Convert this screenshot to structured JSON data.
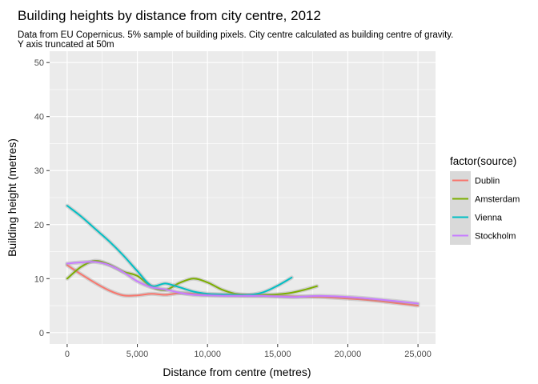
{
  "chart_data": {
    "type": "line",
    "title": "Building heights by distance from city centre, 2012",
    "subtitle_lines": [
      "Data from EU Copernicus. 5% sample of building pixels. City centre calculated as building centre of gravity.",
      "Y axis truncated at 50m"
    ],
    "xlabel": "Distance from centre (metres)",
    "ylabel": "Building height (metres)",
    "xlim": [
      -1250,
      26250
    ],
    "ylim": [
      -2.1,
      52.1
    ],
    "x_ticks": [
      0,
      5000,
      10000,
      15000,
      20000,
      25000
    ],
    "x_tick_labels": [
      "0",
      "5,000",
      "10,000",
      "15,000",
      "20,000",
      "25,000"
    ],
    "y_ticks": [
      0,
      10,
      20,
      30,
      40,
      50
    ],
    "y_tick_labels": [
      "0",
      "10",
      "20",
      "30",
      "40",
      "50"
    ],
    "grid": true,
    "legend": {
      "title": "factor(source)",
      "position": "right",
      "entries": [
        "Dublin",
        "Amsterdam",
        "Vienna",
        "Stockholm"
      ]
    },
    "series": [
      {
        "name": "Dublin",
        "color": "#F8766D",
        "x": [
          0,
          1000,
          2000,
          3000,
          4000,
          5000,
          6000,
          7000,
          8000,
          9000,
          10000,
          12000,
          14000,
          16000,
          18000,
          20000,
          22000,
          25000
        ],
        "y": [
          12.5,
          10.8,
          9.2,
          7.8,
          6.9,
          6.9,
          7.2,
          7.0,
          7.3,
          7.2,
          7.0,
          6.9,
          6.8,
          6.7,
          6.6,
          6.3,
          5.9,
          5.0
        ]
      },
      {
        "name": "Amsterdam",
        "color": "#7CAE00",
        "x": [
          0,
          1000,
          2000,
          3000,
          4000,
          5000,
          6000,
          7000,
          8000,
          9000,
          10000,
          11000,
          12000,
          13000,
          14000,
          15000,
          16000,
          17000,
          17800
        ],
        "y": [
          10.0,
          12.2,
          13.3,
          12.6,
          11.3,
          10.5,
          8.5,
          7.9,
          9.2,
          10.0,
          9.3,
          8.0,
          7.2,
          7.0,
          7.0,
          7.1,
          7.4,
          8.0,
          8.6
        ]
      },
      {
        "name": "Vienna",
        "color": "#00BFC4",
        "x": [
          0,
          1000,
          2000,
          3000,
          4000,
          5000,
          6000,
          7000,
          8000,
          9000,
          10000,
          11000,
          12000,
          13000,
          14000,
          15000,
          16000
        ],
        "y": [
          23.5,
          21.5,
          19.2,
          16.9,
          14.3,
          11.4,
          8.7,
          9.1,
          8.4,
          7.6,
          7.2,
          7.1,
          7.0,
          7.0,
          7.5,
          8.7,
          10.2
        ]
      },
      {
        "name": "Stockholm",
        "color": "#C77CFF",
        "x": [
          0,
          1000,
          2000,
          3000,
          4000,
          5000,
          6000,
          7000,
          8000,
          9000,
          10000,
          12000,
          14000,
          16000,
          18000,
          20000,
          22000,
          25000
        ],
        "y": [
          12.8,
          13.0,
          13.1,
          12.5,
          11.2,
          9.5,
          8.4,
          8.0,
          7.4,
          7.0,
          6.9,
          6.8,
          6.8,
          6.6,
          6.8,
          6.6,
          6.2,
          5.4
        ]
      }
    ]
  }
}
